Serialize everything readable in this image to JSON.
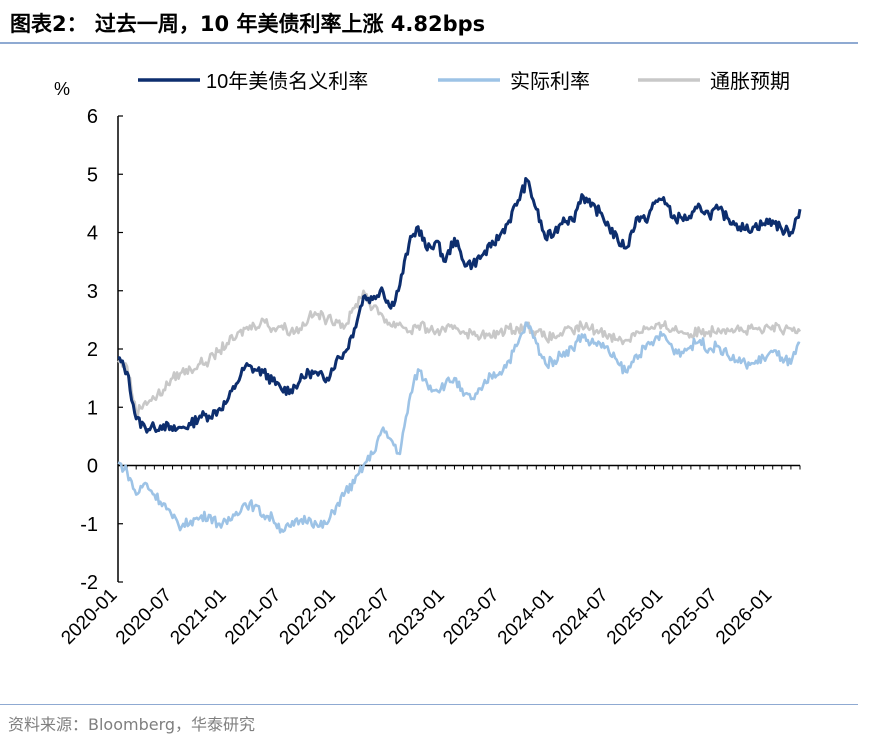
{
  "header": {
    "title": "图表2： 过去一周，10 年美债利率上涨 4.82bps"
  },
  "footer": {
    "source": "资料来源：Bloomberg，华泰研究"
  },
  "chart_data": {
    "type": "line",
    "yunit": "%",
    "ylim": [
      -2,
      6
    ],
    "yticks": [
      -2,
      -1,
      0,
      1,
      2,
      3,
      4,
      5,
      6
    ],
    "xlim": [
      "2020-01",
      "2026-04"
    ],
    "xticks": [
      "2020-01",
      "2020-07",
      "2021-01",
      "2021-07",
      "2022-01",
      "2022-07",
      "2023-01",
      "2023-07",
      "2024-01",
      "2024-07",
      "2025-01",
      "2025-07",
      "2026-01"
    ],
    "grid": false,
    "legend": "top",
    "series": [
      {
        "name": "10年美债名义利率",
        "color": "#0d2e6e",
        "x": [
          "2020-01",
          "2020-02",
          "2020-03",
          "2020-04",
          "2020-05",
          "2020-06",
          "2020-07",
          "2020-08",
          "2020-09",
          "2020-10",
          "2020-11",
          "2020-12",
          "2021-01",
          "2021-02",
          "2021-03",
          "2021-04",
          "2021-05",
          "2021-06",
          "2021-07",
          "2021-08",
          "2021-09",
          "2021-10",
          "2021-11",
          "2021-12",
          "2022-01",
          "2022-02",
          "2022-03",
          "2022-04",
          "2022-05",
          "2022-06",
          "2022-07",
          "2022-08",
          "2022-09",
          "2022-10",
          "2022-11",
          "2022-12",
          "2023-01",
          "2023-02",
          "2023-03",
          "2023-04",
          "2023-05",
          "2023-06",
          "2023-07",
          "2023-08",
          "2023-09",
          "2023-10",
          "2023-11",
          "2023-12",
          "2024-01",
          "2024-02",
          "2024-03",
          "2024-04",
          "2024-05",
          "2024-06",
          "2024-07",
          "2024-08",
          "2024-09",
          "2024-10",
          "2024-11",
          "2024-12",
          "2025-01",
          "2025-02",
          "2025-03",
          "2025-04",
          "2025-05",
          "2025-06",
          "2025-07",
          "2025-08",
          "2025-09",
          "2025-10",
          "2025-11",
          "2025-12",
          "2026-01",
          "2026-02",
          "2026-03",
          "2026-04"
        ],
        "values": [
          1.85,
          1.6,
          0.8,
          0.65,
          0.65,
          0.7,
          0.6,
          0.65,
          0.7,
          0.85,
          0.85,
          0.95,
          1.1,
          1.4,
          1.7,
          1.65,
          1.6,
          1.45,
          1.3,
          1.3,
          1.45,
          1.6,
          1.55,
          1.5,
          1.8,
          1.95,
          2.35,
          2.9,
          2.85,
          3.05,
          2.7,
          3.1,
          3.8,
          4.1,
          3.7,
          3.85,
          3.5,
          3.9,
          3.5,
          3.45,
          3.6,
          3.75,
          3.95,
          4.2,
          4.55,
          4.9,
          4.4,
          3.9,
          4.0,
          4.25,
          4.2,
          4.65,
          4.45,
          4.35,
          4.1,
          3.85,
          3.75,
          4.25,
          4.2,
          4.5,
          4.6,
          4.25,
          4.25,
          4.25,
          4.45,
          4.3,
          4.4,
          4.25,
          4.15,
          4.05,
          4.1,
          4.15,
          4.2,
          4.05,
          4.0,
          4.4
        ]
      },
      {
        "name": "实际利率",
        "color": "#9dc3e6",
        "x": [
          "2020-01",
          "2020-02",
          "2020-03",
          "2020-04",
          "2020-05",
          "2020-06",
          "2020-07",
          "2020-08",
          "2020-09",
          "2020-10",
          "2020-11",
          "2020-12",
          "2021-01",
          "2021-02",
          "2021-03",
          "2021-04",
          "2021-05",
          "2021-06",
          "2021-07",
          "2021-08",
          "2021-09",
          "2021-10",
          "2021-11",
          "2021-12",
          "2022-01",
          "2022-02",
          "2022-03",
          "2022-04",
          "2022-05",
          "2022-06",
          "2022-07",
          "2022-08",
          "2022-09",
          "2022-10",
          "2022-11",
          "2022-12",
          "2023-01",
          "2023-02",
          "2023-03",
          "2023-04",
          "2023-05",
          "2023-06",
          "2023-07",
          "2023-08",
          "2023-09",
          "2023-10",
          "2023-11",
          "2023-12",
          "2024-01",
          "2024-02",
          "2024-03",
          "2024-04",
          "2024-05",
          "2024-06",
          "2024-07",
          "2024-08",
          "2024-09",
          "2024-10",
          "2024-11",
          "2024-12",
          "2025-01",
          "2025-02",
          "2025-03",
          "2025-04",
          "2025-05",
          "2025-06",
          "2025-07",
          "2025-08",
          "2025-09",
          "2025-10",
          "2025-11",
          "2025-12",
          "2026-01",
          "2026-02",
          "2026-03",
          "2026-04"
        ],
        "values": [
          0.05,
          -0.1,
          -0.5,
          -0.3,
          -0.5,
          -0.65,
          -0.9,
          -1.05,
          -0.95,
          -0.9,
          -0.85,
          -1.0,
          -1.0,
          -0.8,
          -0.65,
          -0.7,
          -0.85,
          -0.9,
          -1.1,
          -1.05,
          -0.95,
          -0.9,
          -1.05,
          -1.0,
          -0.7,
          -0.45,
          -0.3,
          0.0,
          0.2,
          0.6,
          0.45,
          0.2,
          1.1,
          1.65,
          1.4,
          1.3,
          1.4,
          1.5,
          1.2,
          1.15,
          1.3,
          1.55,
          1.6,
          1.8,
          2.1,
          2.45,
          2.1,
          1.75,
          1.8,
          1.95,
          2.0,
          2.25,
          2.1,
          2.1,
          1.95,
          1.75,
          1.6,
          1.9,
          2.0,
          2.15,
          2.25,
          2.0,
          1.95,
          2.05,
          2.15,
          2.0,
          2.05,
          1.9,
          1.8,
          1.75,
          1.75,
          1.85,
          1.95,
          1.85,
          1.75,
          2.1
        ]
      },
      {
        "name": "通胀预期",
        "color": "#c8c8c8",
        "x": [
          "2020-01",
          "2020-02",
          "2020-03",
          "2020-04",
          "2020-05",
          "2020-06",
          "2020-07",
          "2020-08",
          "2020-09",
          "2020-10",
          "2020-11",
          "2020-12",
          "2021-01",
          "2021-02",
          "2021-03",
          "2021-04",
          "2021-05",
          "2021-06",
          "2021-07",
          "2021-08",
          "2021-09",
          "2021-10",
          "2021-11",
          "2021-12",
          "2022-01",
          "2022-02",
          "2022-03",
          "2022-04",
          "2022-05",
          "2022-06",
          "2022-07",
          "2022-08",
          "2022-09",
          "2022-10",
          "2022-11",
          "2022-12",
          "2023-01",
          "2023-02",
          "2023-03",
          "2023-04",
          "2023-05",
          "2023-06",
          "2023-07",
          "2023-08",
          "2023-09",
          "2023-10",
          "2023-11",
          "2023-12",
          "2024-01",
          "2024-02",
          "2024-03",
          "2024-04",
          "2024-05",
          "2024-06",
          "2024-07",
          "2024-08",
          "2024-09",
          "2024-10",
          "2024-11",
          "2024-12",
          "2025-01",
          "2025-02",
          "2025-03",
          "2025-04",
          "2025-05",
          "2025-06",
          "2025-07",
          "2025-08",
          "2025-09",
          "2025-10",
          "2025-11",
          "2025-12",
          "2026-01",
          "2026-02",
          "2026-03",
          "2026-04"
        ],
        "values": [
          1.8,
          1.7,
          0.9,
          1.1,
          1.15,
          1.3,
          1.5,
          1.6,
          1.65,
          1.75,
          1.8,
          1.95,
          2.1,
          2.2,
          2.35,
          2.4,
          2.5,
          2.35,
          2.4,
          2.3,
          2.35,
          2.55,
          2.6,
          2.5,
          2.5,
          2.4,
          2.7,
          3.0,
          2.7,
          2.6,
          2.4,
          2.45,
          2.3,
          2.4,
          2.35,
          2.3,
          2.3,
          2.4,
          2.3,
          2.25,
          2.25,
          2.2,
          2.3,
          2.35,
          2.35,
          2.4,
          2.3,
          2.2,
          2.2,
          2.3,
          2.3,
          2.4,
          2.35,
          2.3,
          2.25,
          2.15,
          2.15,
          2.3,
          2.35,
          2.35,
          2.4,
          2.35,
          2.3,
          2.25,
          2.3,
          2.3,
          2.35,
          2.35,
          2.35,
          2.3,
          2.35,
          2.3,
          2.4,
          2.3,
          2.35,
          2.3
        ]
      }
    ]
  }
}
